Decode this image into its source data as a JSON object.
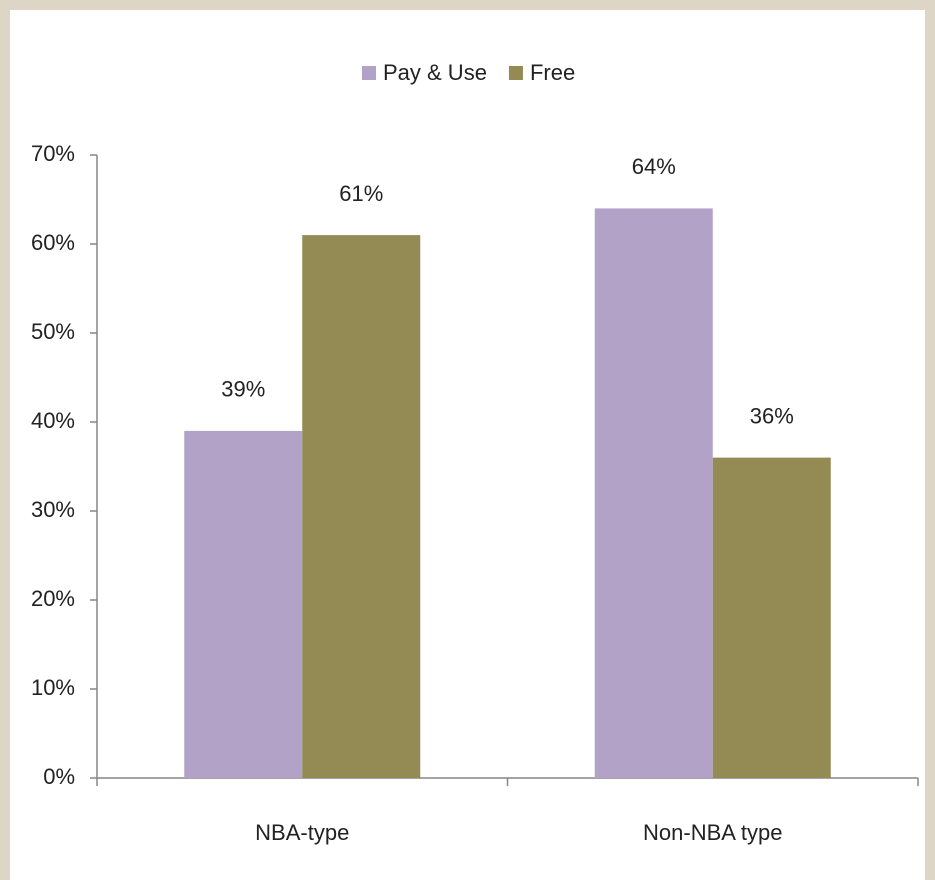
{
  "chart_data": {
    "type": "bar",
    "categories": [
      "NBA-type",
      "Non-NBA type"
    ],
    "series": [
      {
        "name": "Pay & Use",
        "color": "#b3a2c7",
        "values": [
          39,
          64
        ],
        "value_labels": [
          "39%",
          "64%"
        ]
      },
      {
        "name": "Free",
        "color": "#948a54",
        "values": [
          61,
          36
        ],
        "value_labels": [
          "61%",
          "36%"
        ]
      }
    ],
    "ylim": [
      0,
      70
    ],
    "yticks": [
      {
        "value": 0,
        "label": "0%"
      },
      {
        "value": 10,
        "label": "10%"
      },
      {
        "value": 20,
        "label": "20%"
      },
      {
        "value": 30,
        "label": "30%"
      },
      {
        "value": 40,
        "label": "40%"
      },
      {
        "value": 50,
        "label": "50%"
      },
      {
        "value": 60,
        "label": "60%"
      },
      {
        "value": 70,
        "label": "70%"
      }
    ],
    "grid": false,
    "legend": "top"
  }
}
